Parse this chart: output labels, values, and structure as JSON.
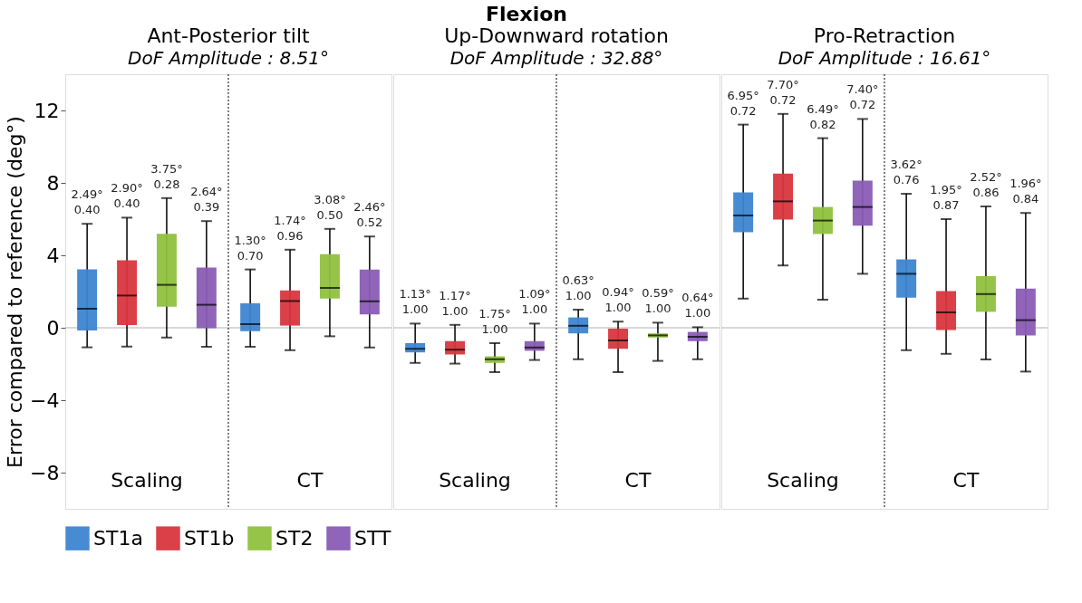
{
  "chart_data": [
    {
      "type": "box",
      "title": "Ant-Posterior tilt",
      "subtitle": "DoF Amplitude : 8.51°",
      "ylabel": "Error compared to reference (deg°)",
      "annotations": [
        "Flexion"
      ],
      "categories": [
        "Scaling",
        "CT"
      ],
      "ylim": [
        -10,
        14
      ],
      "yticks": [
        -8,
        -4,
        0,
        4,
        8,
        12
      ],
      "legend": "bottom",
      "ref_lines": [
        {
          "axis": "y",
          "value": 0,
          "color": "#b0b0b0"
        },
        {
          "axis": "x",
          "value": "CT",
          "color": "#000000",
          "line_style": "dotted"
        }
      ],
      "series": [
        {
          "name": "ST1a",
          "color": "#3d85d1",
          "boxes": [
            {
              "low": -1.08,
              "q1": -0.15,
              "median": 1.05,
              "q3": 3.22,
              "high": 5.74
            },
            {
              "low": -1.05,
              "q1": -0.19,
              "median": 0.2,
              "q3": 1.35,
              "high": 3.22
            }
          ],
          "value_labels": [
            "2.49°\n0.40",
            "1.30°\n0.70"
          ]
        },
        {
          "name": "ST1b",
          "color": "#d9363e",
          "boxes": [
            {
              "low": -1.04,
              "q1": 0.15,
              "median": 1.78,
              "q3": 3.72,
              "high": 6.08
            },
            {
              "low": -1.24,
              "q1": 0.12,
              "median": 1.47,
              "q3": 2.06,
              "high": 4.31
            }
          ],
          "value_labels": [
            "2.90°\n0.40",
            "1.74°\n0.96"
          ]
        },
        {
          "name": "ST2",
          "color": "#8fc13e",
          "boxes": [
            {
              "low": -0.54,
              "q1": 1.16,
              "median": 2.37,
              "q3": 5.19,
              "high": 7.16
            },
            {
              "low": -0.47,
              "q1": 1.61,
              "median": 2.2,
              "q3": 4.06,
              "high": 5.46
            }
          ],
          "value_labels": [
            "3.75°\n0.28",
            "3.08°\n0.50"
          ]
        },
        {
          "name": "STT",
          "color": "#8a5cb5",
          "boxes": [
            {
              "low": -1.05,
              "q1": -0.03,
              "median": 1.27,
              "q3": 3.32,
              "high": 5.89
            },
            {
              "low": -1.09,
              "q1": 0.74,
              "median": 1.46,
              "q3": 3.21,
              "high": 5.04
            }
          ],
          "value_labels": [
            "2.64°\n0.39",
            "2.46°\n0.52"
          ]
        }
      ]
    },
    {
      "type": "box",
      "title": "Up-Downward rotation",
      "subtitle": "DoF Amplitude : 32.88°",
      "categories": [
        "Scaling",
        "CT"
      ],
      "ylim": [
        -10,
        14
      ],
      "yticks": [
        -8,
        -4,
        0,
        4,
        8,
        12
      ],
      "tick_labels": "x",
      "legend": "bottom",
      "ref_lines": [
        {
          "axis": "y",
          "value": 0,
          "color": "#b0b0b0"
        },
        {
          "axis": "x",
          "value": "CT",
          "color": "#000000",
          "line_style": "dotted"
        }
      ],
      "series": [
        {
          "name": "ST1a",
          "color": "#3d85d1",
          "boxes": [
            {
              "low": -1.94,
              "q1": -1.36,
              "median": -1.16,
              "q3": -0.85,
              "high": 0.23
            },
            {
              "low": -1.74,
              "q1": -0.31,
              "median": 0.11,
              "q3": 0.57,
              "high": 1.0
            }
          ],
          "value_labels": [
            "1.13°\n1.00",
            "0.63°\n1.00"
          ]
        },
        {
          "name": "ST1b",
          "color": "#d9363e",
          "boxes": [
            {
              "low": -1.98,
              "q1": -1.47,
              "median": -1.21,
              "q3": -0.74,
              "high": 0.16
            },
            {
              "low": -2.45,
              "q1": -1.16,
              "median": -0.7,
              "q3": -0.05,
              "high": 0.34
            }
          ],
          "value_labels": [
            "1.17°\n1.00",
            "0.94°\n1.00"
          ]
        },
        {
          "name": "ST2",
          "color": "#8fc13e",
          "boxes": [
            {
              "low": -2.45,
              "q1": -1.94,
              "median": -1.74,
              "q3": -1.58,
              "high": -0.85
            },
            {
              "low": -1.83,
              "q1": -0.54,
              "median": -0.42,
              "q3": -0.31,
              "high": 0.28
            }
          ],
          "value_labels": [
            "1.75°\n1.00",
            "0.59°\n1.00"
          ]
        },
        {
          "name": "STT",
          "color": "#8a5cb5",
          "boxes": [
            {
              "low": -1.78,
              "q1": -1.27,
              "median": -1.09,
              "q3": -0.74,
              "high": 0.23
            },
            {
              "low": -1.74,
              "q1": -0.74,
              "median": -0.5,
              "q3": -0.23,
              "high": 0.03
            }
          ],
          "value_labels": [
            "1.09°\n1.00",
            "0.64°\n1.00"
          ]
        }
      ]
    },
    {
      "type": "box",
      "title": "Pro-Retraction",
      "subtitle": "DoF Amplitude : 16.61°",
      "categories": [
        "Scaling",
        "CT"
      ],
      "ylim": [
        -10,
        14
      ],
      "yticks": [
        -8,
        -4,
        0,
        4,
        8,
        12
      ],
      "tick_labels": "x",
      "legend": "bottom",
      "ref_lines": [
        {
          "axis": "y",
          "value": 0,
          "color": "#b0b0b0"
        },
        {
          "axis": "x",
          "value": "CT",
          "color": "#000000",
          "line_style": "dotted"
        }
      ],
      "series": [
        {
          "name": "ST1a",
          "color": "#3d85d1",
          "boxes": [
            {
              "low": 1.61,
              "q1": 5.27,
              "median": 6.2,
              "q3": 7.47,
              "high": 11.22
            },
            {
              "low": -1.24,
              "q1": 1.66,
              "median": 2.98,
              "q3": 3.78,
              "high": 7.4
            }
          ],
          "value_labels": [
            "6.95°\n0.72",
            "3.62°\n0.76"
          ]
        },
        {
          "name": "ST1b",
          "color": "#d9363e",
          "boxes": [
            {
              "low": 3.44,
              "q1": 5.97,
              "median": 6.98,
              "q3": 8.51,
              "high": 11.81
            },
            {
              "low": -1.44,
              "q1": -0.12,
              "median": 0.85,
              "q3": 2.02,
              "high": 6.0
            }
          ],
          "value_labels": [
            "7.70°\n0.72",
            "1.95°\n0.87"
          ]
        },
        {
          "name": "ST2",
          "color": "#8fc13e",
          "boxes": [
            {
              "low": 1.55,
              "q1": 5.18,
              "median": 5.92,
              "q3": 6.67,
              "high": 10.47
            },
            {
              "low": -1.75,
              "q1": 0.88,
              "median": 1.86,
              "q3": 2.85,
              "high": 6.7
            }
          ],
          "value_labels": [
            "6.49°\n0.82",
            "2.52°\n0.86"
          ]
        },
        {
          "name": "STT",
          "color": "#8a5cb5",
          "boxes": [
            {
              "low": 2.98,
              "q1": 5.64,
              "median": 6.67,
              "q3": 8.12,
              "high": 11.53
            },
            {
              "low": -2.42,
              "q1": -0.43,
              "median": 0.42,
              "q3": 2.16,
              "high": 6.34
            }
          ],
          "value_labels": [
            "7.40°\n0.72",
            "1.96°\n0.84"
          ]
        }
      ]
    }
  ]
}
